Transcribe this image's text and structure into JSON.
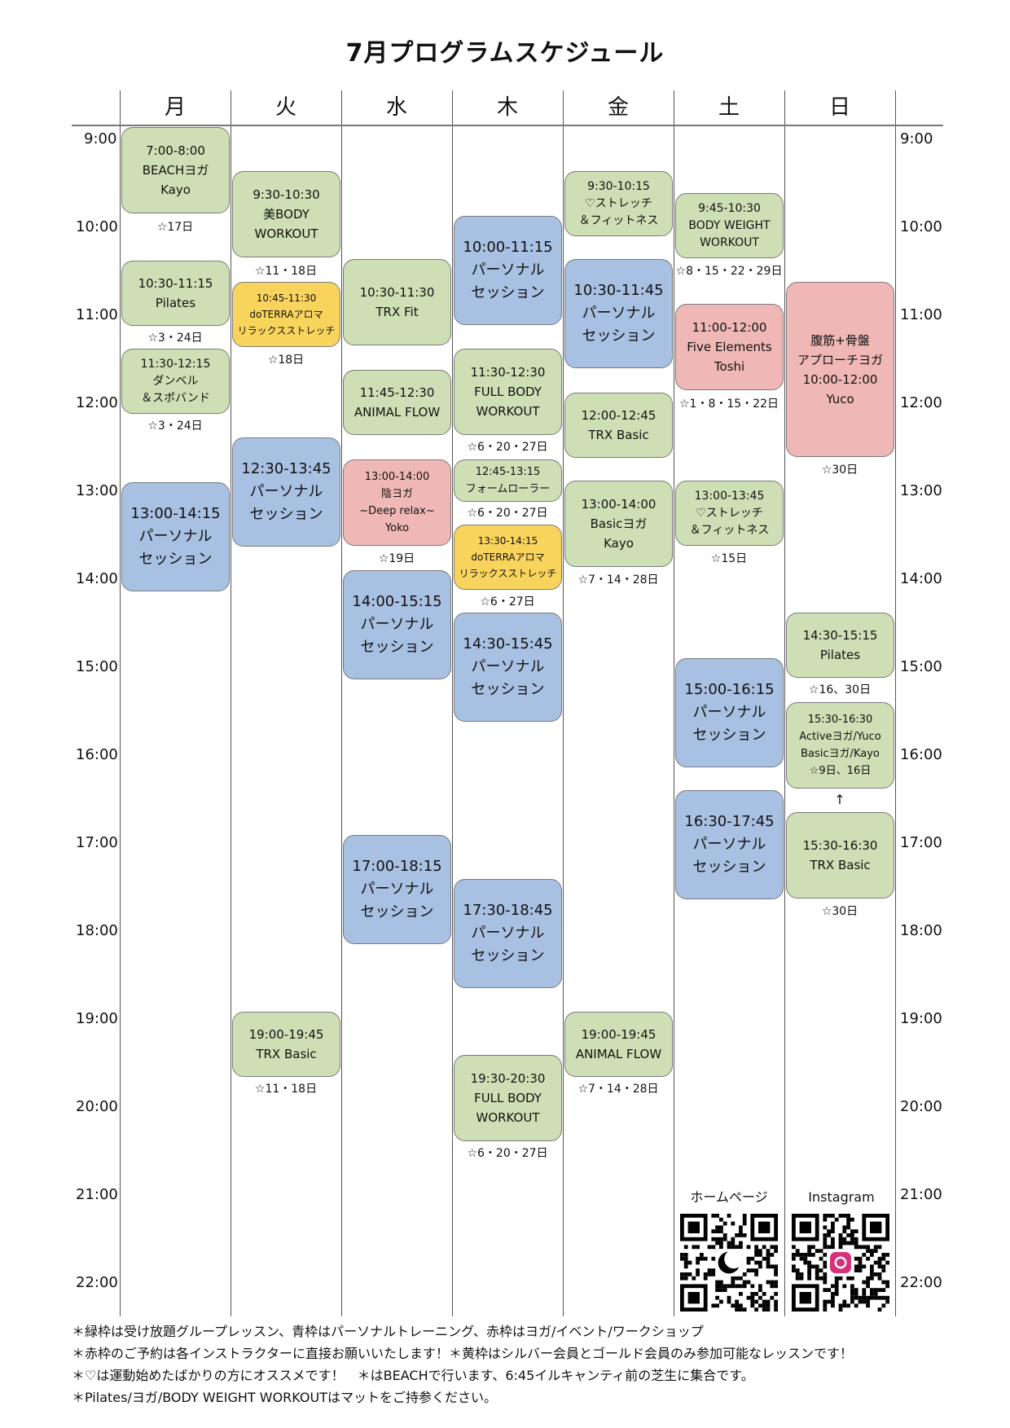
{
  "title": "7月プログラムスケジュール",
  "days": [
    "月",
    "火",
    "水",
    "木",
    "金",
    "土",
    "日"
  ],
  "times": [
    "9:00",
    "10:00",
    "11:00",
    "12:00",
    "13:00",
    "14:00",
    "15:00",
    "16:00",
    "17:00",
    "18:00",
    "19:00",
    "20:00",
    "21:00",
    "22:00"
  ],
  "classes": {
    "mon": [
      {
        "lines": [
          "7:00-8:00",
          "BEACHヨガ",
          "Kayo"
        ],
        "note": "☆17日"
      },
      {
        "lines": [
          "10:30-11:15",
          "Pilates"
        ],
        "note": "☆3・24日"
      },
      {
        "lines": [
          "11:30-12:15",
          "ダンベル",
          "＆スポバンド"
        ],
        "note": "☆3・24日"
      },
      {
        "lines": [
          "13:00-14:15",
          "パーソナル",
          "セッション"
        ]
      }
    ],
    "tue": [
      {
        "lines": [
          "9:30-10:30",
          "美BODY",
          "WORKOUT"
        ],
        "note": "☆11・18日"
      },
      {
        "lines": [
          "10:45-11:30",
          "doTERRAアロマ",
          "リラックスストレッチ"
        ],
        "note": "☆18日"
      },
      {
        "lines": [
          "12:30-13:45",
          "パーソナル",
          "セッション"
        ]
      },
      {
        "lines": [
          "19:00-19:45",
          "TRX Basic"
        ],
        "note": "☆11・18日"
      }
    ],
    "wed": [
      {
        "lines": [
          "10:30-11:30",
          "TRX Fit"
        ]
      },
      {
        "lines": [
          "11:45-12:30",
          "ANIMAL FLOW"
        ]
      },
      {
        "lines": [
          "13:00-14:00",
          "陰ヨガ",
          "~Deep relax~",
          "Yoko"
        ],
        "note": "☆19日"
      },
      {
        "lines": [
          "14:00-15:15",
          "パーソナル",
          "セッション"
        ]
      },
      {
        "lines": [
          "17:00-18:15",
          "パーソナル",
          "セッション"
        ]
      }
    ],
    "thu": [
      {
        "lines": [
          "10:00-11:15",
          "パーソナル",
          "セッション"
        ]
      },
      {
        "lines": [
          "11:30-12:30",
          "FULL BODY",
          "WORKOUT"
        ],
        "note": "☆6・20・27日"
      },
      {
        "lines": [
          "12:45-13:15",
          "フォームローラー"
        ],
        "note": "☆6・20・27日"
      },
      {
        "lines": [
          "13:30-14:15",
          "doTERRAアロマ",
          "リラックスストレッチ"
        ],
        "note": "☆6・27日"
      },
      {
        "lines": [
          "14:30-15:45",
          "パーソナル",
          "セッション"
        ]
      },
      {
        "lines": [
          "17:30-18:45",
          "パーソナル",
          "セッション"
        ]
      },
      {
        "lines": [
          "19:30-20:30",
          "FULL BODY",
          "WORKOUT"
        ],
        "note": "☆6・20・27日"
      }
    ],
    "fri": [
      {
        "lines": [
          "9:30-10:15",
          "♡ストレッチ",
          "＆フィットネス"
        ]
      },
      {
        "lines": [
          "10:30-11:45",
          "パーソナル",
          "セッション"
        ]
      },
      {
        "lines": [
          "12:00-12:45",
          "TRX Basic"
        ]
      },
      {
        "lines": [
          "13:00-14:00",
          "Basicヨガ",
          "Kayo"
        ],
        "note": "☆7・14・28日"
      },
      {
        "lines": [
          "19:00-19:45",
          "ANIMAL FLOW"
        ],
        "note": "☆7・14・28日"
      }
    ],
    "sat": [
      {
        "lines": [
          "9:45-10:30",
          "BODY WEIGHT",
          "WORKOUT"
        ],
        "note": "☆8・15・22・29日"
      },
      {
        "lines": [
          "11:00-12:00",
          "Five Elements",
          "Toshi"
        ],
        "note": "☆1・8・15・22日"
      },
      {
        "lines": [
          "13:00-13:45",
          "♡ストレッチ",
          "＆フィットネス"
        ],
        "note": "☆15日"
      },
      {
        "lines": [
          "15:00-16:15",
          "パーソナル",
          "セッション"
        ]
      },
      {
        "lines": [
          "16:30-17:45",
          "パーソナル",
          "セッション"
        ]
      }
    ],
    "sun": [
      {
        "lines": [
          "腹筋+骨盤",
          "アプローチヨガ",
          "10:00-12:00",
          "Yuco"
        ],
        "note": "☆30日"
      },
      {
        "lines": [
          "14:30-15:15",
          "Pilates"
        ],
        "note": "☆16、30日"
      },
      {
        "lines": [
          "15:30-16:30",
          "Activeヨガ/Yuco",
          "Basicヨガ/Kayo",
          "☆9日、16日"
        ]
      },
      {
        "arrow": "↑"
      },
      {
        "lines": [
          "15:30-16:30",
          "TRX Basic"
        ],
        "note": "☆30日"
      }
    ]
  },
  "qr": {
    "homepage_label": "ホームページ",
    "instagram_label": "Instagram"
  },
  "footnotes": [
    "＊緑枠は受け放題グループレッスン、青枠はパーソナルトレーニング、赤枠はヨガ/イベント/ワークショップ",
    "＊赤枠のご予約は各インストラクターに直接お願いいたします！＊黄枠はシルバー会員とゴールド会員のみ参加可能なレッスンです！",
    "＊♡は運動始めたばかりの方にオススメです！　＊はBEACHで行います、6:45イルキャンティ前の芝生に集合です。",
    "＊Pilates/ヨガ/BODY WEIGHT WORKOUTはマットをご持参ください。"
  ],
  "colors": {
    "group": "#cfdfb5",
    "personal": "#a8c0e2",
    "yoga_event": "#efb8b6",
    "member_only": "#f9d45c"
  }
}
